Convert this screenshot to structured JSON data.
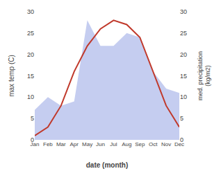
{
  "chart_data": {
    "type": "line",
    "xlabel": "date (month)",
    "ylabel": "max temp (C)",
    "y2label": "med. precipitation\n(kg/m2)",
    "categories": [
      "Jan",
      "Feb",
      "Mar",
      "Apr",
      "May",
      "Jun",
      "Jul",
      "Aug",
      "Sep",
      "Oct",
      "Nov",
      "Dec"
    ],
    "series": [
      {
        "type": "area",
        "color": "#c5cdf0",
        "axis": "y2",
        "values": [
          7,
          10,
          8,
          9,
          28,
          22,
          22,
          25,
          24,
          16,
          12,
          11
        ]
      },
      {
        "type": "line",
        "color": "#c0392b",
        "values": [
          1,
          3,
          8,
          16,
          22,
          26,
          28,
          27,
          24,
          16,
          8,
          3
        ]
      }
    ],
    "ylim": [
      0,
      30
    ],
    "yticks": [
      0,
      5,
      10,
      15,
      20,
      25,
      30
    ],
    "y2lim": [
      0,
      30
    ],
    "y2ticks": [
      0,
      5,
      10,
      15,
      20,
      25,
      30
    ],
    "grid": false
  }
}
